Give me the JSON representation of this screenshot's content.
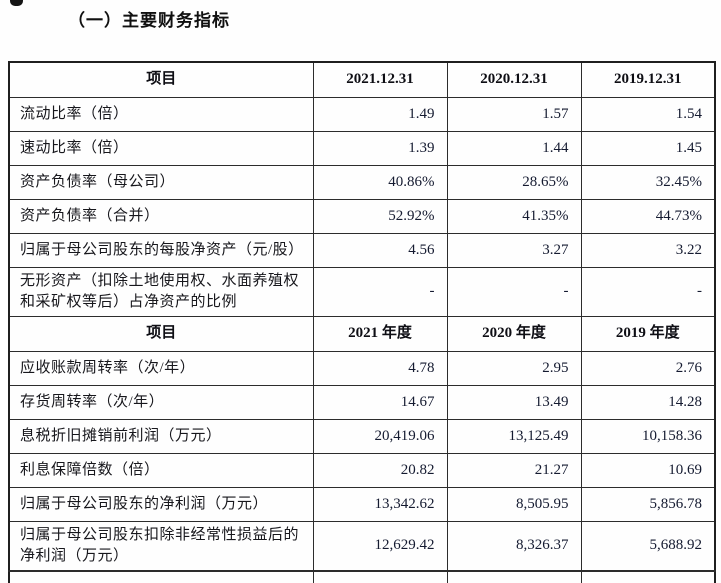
{
  "section": {
    "title": "（一）主要财务指标"
  },
  "tables": [
    {
      "headers": [
        "项目",
        "2021.12.31",
        "2020.12.31",
        "2019.12.31"
      ],
      "rows": [
        {
          "label": "流动比率（倍）",
          "values": [
            "1.49",
            "1.57",
            "1.54"
          ]
        },
        {
          "label": "速动比率（倍）",
          "values": [
            "1.39",
            "1.44",
            "1.45"
          ]
        },
        {
          "label": "资产负债率（母公司）",
          "values": [
            "40.86%",
            "28.65%",
            "32.45%"
          ]
        },
        {
          "label": "资产负债率（合并）",
          "values": [
            "52.92%",
            "41.35%",
            "44.73%"
          ]
        },
        {
          "label": "归属于母公司股东的每股净资产（元/股）",
          "values": [
            "4.56",
            "3.27",
            "3.22"
          ]
        },
        {
          "label": "无形资产（扣除土地使用权、水面养殖权和采矿权等后）占净资产的比例",
          "values": [
            "-",
            "-",
            "-"
          ]
        }
      ]
    },
    {
      "headers": [
        "项目",
        "2021 年度",
        "2020 年度",
        "2019 年度"
      ],
      "rows": [
        {
          "label": "应收账款周转率（次/年）",
          "values": [
            "4.78",
            "2.95",
            "2.76"
          ]
        },
        {
          "label": "存货周转率（次/年）",
          "values": [
            "14.67",
            "13.49",
            "14.28"
          ]
        },
        {
          "label": "息税折旧摊销前利润（万元）",
          "values": [
            "20,419.06",
            "13,125.49",
            "10,158.36"
          ]
        },
        {
          "label": "利息保障倍数（倍）",
          "values": [
            "20.82",
            "21.27",
            "10.69"
          ]
        },
        {
          "label": "归属于母公司股东的净利润（万元）",
          "values": [
            "13,342.62",
            "8,505.95",
            "5,856.78"
          ]
        },
        {
          "label": "归属于母公司股东扣除非经常性损益后的净利润（万元）",
          "values": [
            "12,629.42",
            "8,326.37",
            "5,688.92"
          ]
        }
      ]
    }
  ]
}
